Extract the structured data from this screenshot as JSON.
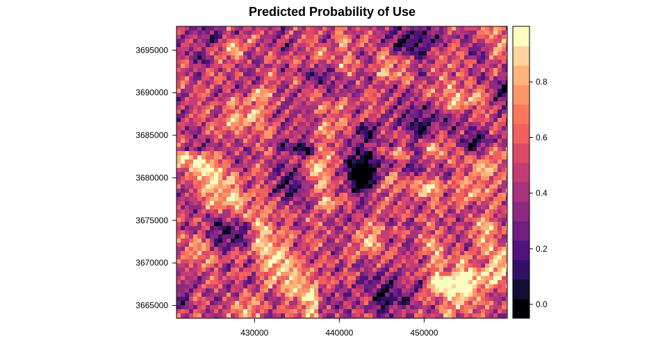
{
  "chart_data": {
    "type": "heatmap",
    "title": "Predicted Probability of Use",
    "xlabel": "",
    "ylabel": "",
    "xlim": [
      420800,
      459800
    ],
    "ylim": [
      3663500,
      3697800
    ],
    "x_ticks": [
      430000,
      440000,
      450000
    ],
    "x_tick_labels": [
      "430000",
      "440000",
      "450000"
    ],
    "y_ticks": [
      3665000,
      3670000,
      3675000,
      3680000,
      3685000,
      3690000,
      3695000
    ],
    "y_tick_labels": [
      "3665000",
      "3670000",
      "3675000",
      "3680000",
      "3685000",
      "3690000",
      "3695000"
    ],
    "colorbar": {
      "range": [
        -0.05,
        1.0
      ],
      "ticks": [
        0.0,
        0.2,
        0.4,
        0.6,
        0.8
      ],
      "tick_labels": [
        "0.0",
        "0.2",
        "0.4",
        "0.6",
        "0.8"
      ],
      "colors": [
        "#000004",
        "#120d32",
        "#331068",
        "#51127c",
        "#6f1f81",
        "#8c2981",
        "#a8327d",
        "#c43c75",
        "#de4968",
        "#f1605d",
        "#f9785d",
        "#fd9668",
        "#feb47b",
        "#fdd49e",
        "#fcfdbf"
      ]
    },
    "legend_position": "right",
    "grid": false
  }
}
